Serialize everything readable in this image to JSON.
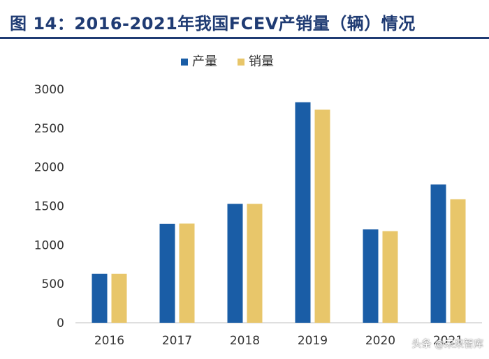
{
  "figure": {
    "title": "图 14：2016-2021年我国FCEV产销量（辆）情况"
  },
  "colors": {
    "production": "#1a5da6",
    "sales": "#e8c66a",
    "axis": "#bfbfbf",
    "text": "#333333",
    "title": "#1f3b73"
  },
  "chart_data": {
    "type": "bar",
    "title": "2016-2021年我国FCEV产销量（辆）情况",
    "categories": [
      "2016",
      "2017",
      "2018",
      "2019",
      "2020",
      "2021"
    ],
    "series": [
      {
        "name": "产量",
        "values": [
          629,
          1272,
          1527,
          2833,
          1199,
          1777
        ]
      },
      {
        "name": "销量",
        "values": [
          629,
          1275,
          1527,
          2737,
          1177,
          1586
        ]
      }
    ],
    "ylim": [
      0,
      3000
    ],
    "yticks": [
      0,
      500,
      1000,
      1500,
      2000,
      2500,
      3000
    ],
    "xlabel": "",
    "ylabel": "",
    "grid": false,
    "legend_position": "top-center"
  },
  "watermark": {
    "text": "头条 @未来智库"
  }
}
